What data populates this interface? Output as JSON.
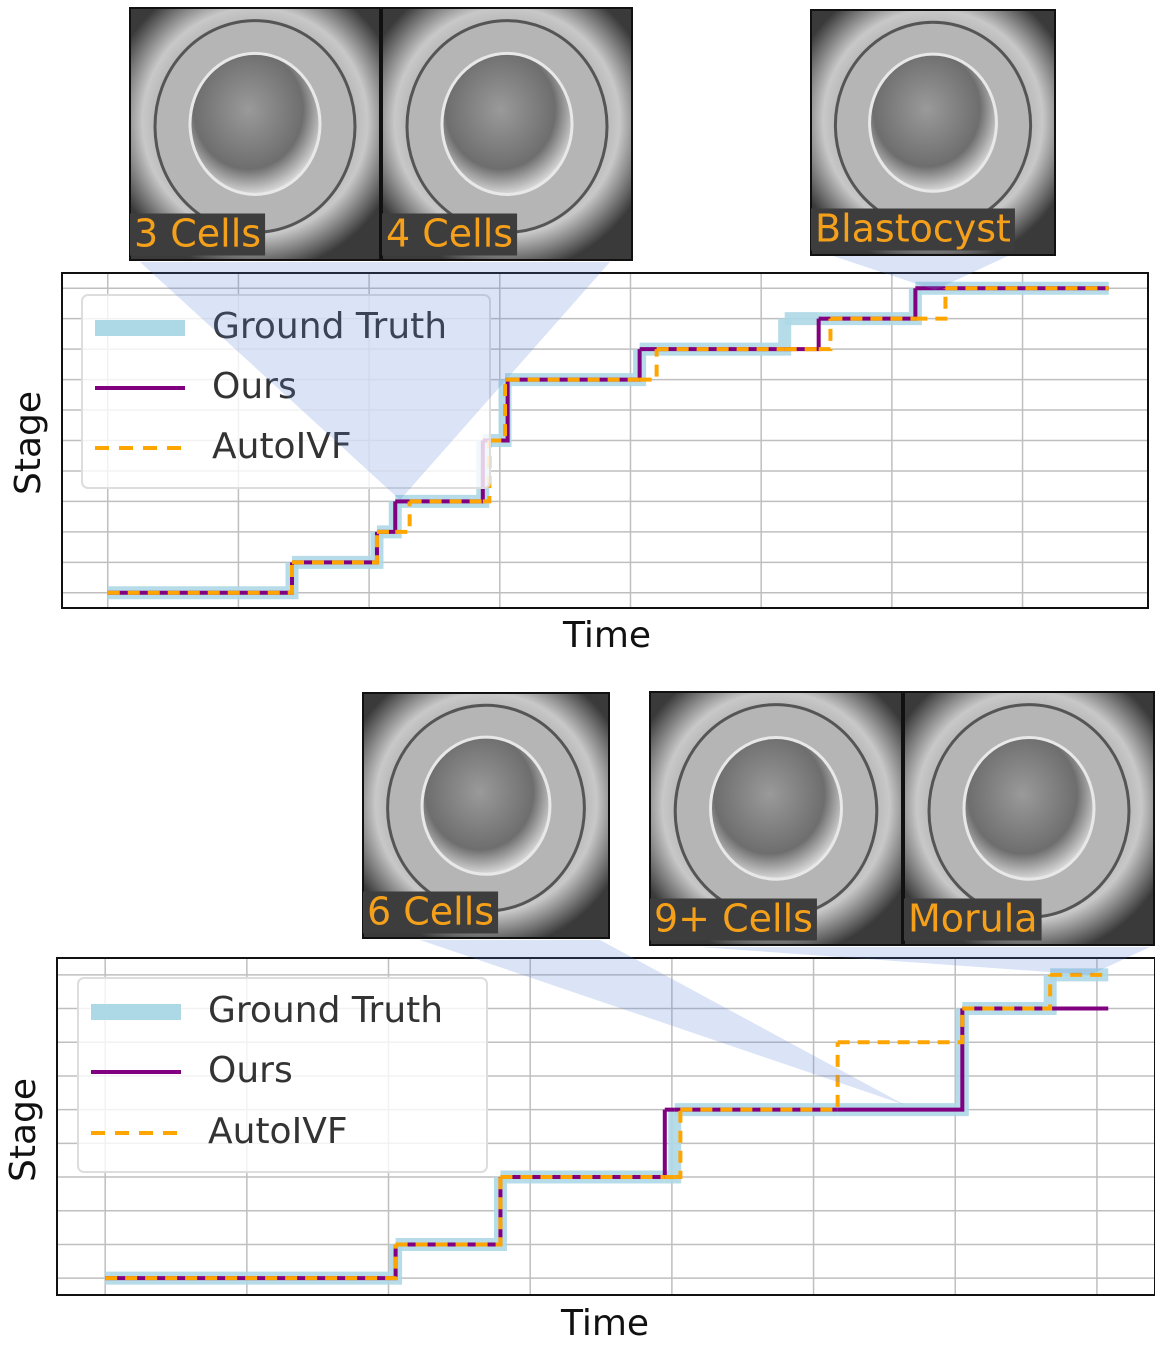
{
  "chart_data": [
    {
      "type": "step",
      "xlabel": "Time",
      "ylabel": "Stage",
      "x": [
        0,
        1.41,
        2.06,
        2.2,
        2.31,
        2.87,
        2.92,
        3.04,
        3.06,
        4.07,
        4.2,
        5.18,
        5.44,
        5.53,
        6.18,
        6.41,
        7.66
      ],
      "xlim": [
        -0.35,
        7.96
      ],
      "xticks": [
        0,
        1,
        2,
        3,
        4,
        5,
        6,
        7
      ],
      "ylim": [
        -0.5,
        10.5
      ],
      "yticks": [
        0,
        1,
        2,
        3,
        4,
        5,
        6,
        7,
        8,
        9,
        10
      ],
      "grid": true,
      "legend": "upper left",
      "annotations": [
        "3 Cells",
        "4 Cells",
        "Blastocyst"
      ],
      "series": [
        {
          "name": "Ground Truth",
          "color": "#add8e6",
          "linestyle": "solid",
          "values": [
            0,
            1,
            2,
            3,
            3,
            5,
            5,
            7,
            7,
            8,
            8,
            9,
            9,
            9,
            10,
            10,
            10
          ]
        },
        {
          "name": "Ours",
          "color": "#800080",
          "linestyle": "solid",
          "values": [
            0,
            1,
            2,
            3,
            3,
            5,
            5,
            5,
            7,
            8,
            8,
            8,
            9,
            9,
            10,
            10,
            10
          ]
        },
        {
          "name": "AutoIVF",
          "color": "#ffa500",
          "linestyle": "dashed",
          "values": [
            0,
            1,
            2,
            2,
            3,
            3,
            5,
            7,
            7,
            7,
            8,
            8,
            8,
            9,
            9,
            10,
            10
          ]
        }
      ]
    },
    {
      "type": "step",
      "xlabel": "Time",
      "ylabel": "Stage",
      "x": [
        0,
        2.05,
        2.79,
        3.95,
        4.02,
        4.06,
        5.17,
        6.05,
        6.67,
        7.08
      ],
      "xlim": [
        -0.34,
        7.41
      ],
      "xticks": [
        0,
        1,
        2,
        3,
        4,
        5,
        6,
        7
      ],
      "ylim": [
        -0.5,
        9.5
      ],
      "yticks": [
        0,
        1,
        2,
        3,
        4,
        5,
        6,
        7,
        8,
        9
      ],
      "grid": true,
      "legend": "upper left",
      "annotations": [
        "6 Cells",
        "9+ Cells",
        "Morula"
      ],
      "series": [
        {
          "name": "Ground Truth",
          "color": "#add8e6",
          "linestyle": "solid",
          "values": [
            0,
            1,
            3,
            3,
            5,
            5,
            5,
            8,
            9,
            9
          ]
        },
        {
          "name": "Ours",
          "color": "#800080",
          "linestyle": "solid",
          "values": [
            0,
            1,
            3,
            5,
            5,
            5,
            5,
            8,
            8,
            8
          ]
        },
        {
          "name": "AutoIVF",
          "color": "#ffa500",
          "linestyle": "dashed",
          "values": [
            0,
            1,
            3,
            3,
            3,
            5,
            7,
            8,
            9,
            9
          ]
        }
      ]
    }
  ]
}
